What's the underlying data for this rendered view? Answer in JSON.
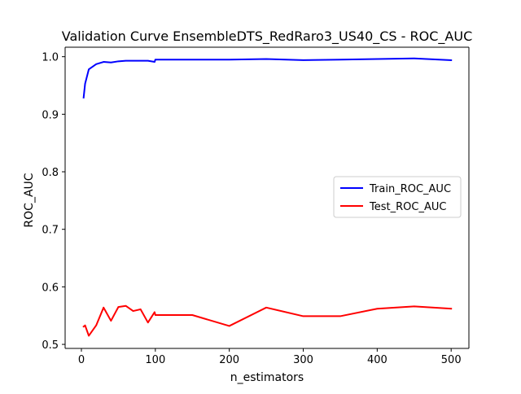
{
  "chart_data": {
    "type": "line",
    "title": "Validation Curve EnsembleDTS_RedRaro3_US40_CS - ROC_AUC",
    "xlabel": "n_estimators",
    "ylabel": "ROC_AUC",
    "xlim": [
      -22,
      524
    ],
    "ylim": [
      0.493,
      1.0165
    ],
    "xticks": [
      0,
      100,
      200,
      300,
      400,
      500
    ],
    "yticks": [
      0.5,
      0.6,
      0.7,
      0.8,
      0.9,
      1.0
    ],
    "ytick_labels": [
      "0.5",
      "0.6",
      "0.7",
      "0.8",
      "0.9",
      "1.0"
    ],
    "grid": false,
    "legend_position": "center-right",
    "series": [
      {
        "name": "Train_ROC_AUC",
        "color": "#0000ff",
        "x": [
          3,
          5,
          10,
          20,
          30,
          40,
          50,
          60,
          70,
          80,
          90,
          99,
          100,
          150,
          200,
          250,
          300,
          350,
          400,
          450,
          500
        ],
        "y": [
          0.929,
          0.953,
          0.978,
          0.987,
          0.991,
          0.99,
          0.992,
          0.993,
          0.993,
          0.993,
          0.993,
          0.991,
          0.995,
          0.995,
          0.995,
          0.996,
          0.994,
          0.995,
          0.996,
          0.997,
          0.994
        ]
      },
      {
        "name": "Test_ROC_AUC",
        "color": "#ff0000",
        "x": [
          3,
          5,
          10,
          20,
          30,
          40,
          50,
          60,
          70,
          80,
          90,
          99,
          100,
          150,
          200,
          250,
          300,
          350,
          400,
          450,
          500
        ],
        "y": [
          0.531,
          0.533,
          0.515,
          0.533,
          0.564,
          0.541,
          0.565,
          0.567,
          0.558,
          0.561,
          0.538,
          0.556,
          0.551,
          0.551,
          0.532,
          0.564,
          0.549,
          0.549,
          0.562,
          0.566,
          0.562
        ]
      }
    ]
  }
}
